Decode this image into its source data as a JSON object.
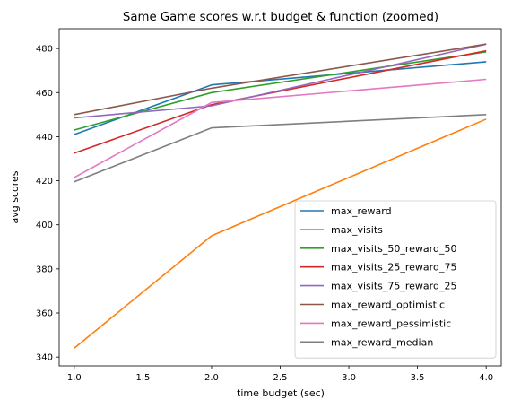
{
  "chart_data": {
    "type": "line",
    "title": "Same Game scores w.r.t budget & function (zoomed)",
    "xlabel": "time budget (sec)",
    "ylabel": "avg scores",
    "x": [
      1.0,
      2.0,
      4.0
    ],
    "xlim": [
      0.89,
      4.11
    ],
    "ylim": [
      336,
      489
    ],
    "xticks": [
      1.0,
      1.5,
      2.0,
      2.5,
      3.0,
      3.5,
      4.0
    ],
    "xtick_labels": [
      "1.0",
      "1.5",
      "2.0",
      "2.5",
      "3.0",
      "3.5",
      "4.0"
    ],
    "yticks": [
      340,
      360,
      380,
      400,
      420,
      440,
      460,
      480
    ],
    "ytick_labels": [
      "340",
      "360",
      "380",
      "400",
      "420",
      "440",
      "460",
      "480"
    ],
    "grid": false,
    "legend_position": "lower right",
    "series": [
      {
        "name": "max_reward",
        "color": "#1f77b4",
        "values": [
          441,
          463.5,
          474
        ]
      },
      {
        "name": "max_visits",
        "color": "#ff7f0e",
        "values": [
          344,
          395,
          448
        ]
      },
      {
        "name": "max_visits_50_reward_50",
        "color": "#2ca02c",
        "values": [
          443,
          460,
          478.5
        ]
      },
      {
        "name": "max_visits_25_reward_75",
        "color": "#d62728",
        "values": [
          432.5,
          454.5,
          479
        ]
      },
      {
        "name": "max_visits_75_reward_25",
        "color": "#9467bd",
        "values": [
          448.5,
          454,
          482
        ]
      },
      {
        "name": "max_reward_optimistic",
        "color": "#8c564b",
        "values": [
          450,
          462,
          482
        ]
      },
      {
        "name": "max_reward_pessimistic",
        "color": "#e377c2",
        "values": [
          421.5,
          455.5,
          466
        ]
      },
      {
        "name": "max_reward_median",
        "color": "#7f7f7f",
        "values": [
          419.5,
          444,
          450
        ]
      }
    ]
  }
}
